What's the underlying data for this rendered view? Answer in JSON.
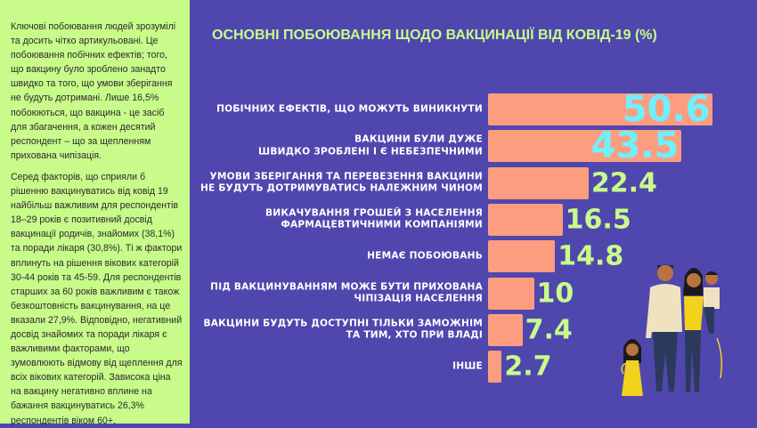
{
  "sidebar": {
    "paragraphs": [
      "Ключові побоювання людей зрозумілі та досить чітко артикульовані. Це побоювання побічних ефектів; того, що вакцину було зроблено занадто швидко та того, що умови зберігання не будуть дотримані. Лише 16,5% побоюються, що вакцина - це засіб для збагачення, а кожен десятий респондент – що за щепленням прихована чипізація.",
      "Серед факторів, що сприяли б рішенню вакцинуватись від ковід 19 найбільш важливим для респондентів 18–29 років є позитивний досвід вакцинації родичів, знайомих (38,1%) та поради лікаря (30,8%). Ті ж фактори вплинуть на рішення вікових категорій 30-44 років та 45-59. Для респондентів старших за 60 років важливим є також безкоштовність вакцинування, на це вказали 27,9%. Відповідно, негативний досвід знайомих та поради лікаря є важливими факторами, що зумовлюють відмову від щеплення для всіх вікових категорій. Зависока ціна на вакцину негативно вплине на бажання вакцинуватись 26,3% респондентів віком 60+."
    ]
  },
  "chart_data": {
    "type": "bar",
    "orientation": "horizontal",
    "title": "ОСНОВНІ ПОБОЮВАННЯ ЩОДО ВАКЦИНАЦІЇ ВІД КОВІД-19 (%)",
    "categories": [
      "ПОБІЧНИХ ЕФЕКТІВ, ЩО МОЖУТЬ ВИНИКНУТИ",
      "ВАКЦИНИ БУЛИ ДУЖЕ ШВИДКО ЗРОБЛЕНІ І Є НЕБЕЗПЕЧНИМИ",
      "УМОВИ ЗБЕРІГАННЯ ТА ПЕРЕВЕЗЕННЯ ВАКЦИНИ НЕ БУДУТЬ ДОТРИМУВАТИСЬ НАЛЕЖНИМ ЧИНОМ",
      "ВИКАЧУВАННЯ ГРОШЕЙ З НАСЕЛЕННЯ ФАРМАЦЕВТИЧНИМИ КОМПАНІЯМИ",
      "НЕМАЄ ПОБОЮВАНЬ",
      "ПІД ВАКЦИНУВАННЯМ МОЖЕ БУТИ ПРИХОВАНА ЧІПІЗАЦІЯ НАСЕЛЕННЯ",
      "ВАКЦИНИ БУДУТЬ ДОСТУПНІ ТІЛЬКИ ЗАМОЖНІМ ТА ТИМ, ХТО ПРИ ВЛАДІ",
      "ІНШЕ"
    ],
    "label_lines": [
      [
        "ПОБІЧНИХ ЕФЕКТІВ, ЩО МОЖУТЬ ВИНИКНУТИ"
      ],
      [
        "ВАКЦИНИ БУЛИ ДУЖЕ",
        "ШВИДКО ЗРОБЛЕНІ І Є НЕБЕЗПЕЧНИМИ"
      ],
      [
        "УМОВИ ЗБЕРІГАННЯ ТА ПЕРЕВЕЗЕННЯ ВАКЦИНИ",
        "НЕ БУДУТЬ ДОТРИМУВАТИСЬ НАЛЕЖНИМ ЧИНОМ"
      ],
      [
        "ВИКАЧУВАННЯ ГРОШЕЙ З НАСЕЛЕННЯ",
        "ФАРМАЦЕВТИЧНИМИ КОМПАНІЯМИ"
      ],
      [
        "НЕМАЄ ПОБОЮВАНЬ"
      ],
      [
        "ПІД ВАКЦИНУВАННЯМ МОЖЕ БУТИ ПРИХОВАНА",
        "ЧІПІЗАЦІЯ НАСЕЛЕННЯ"
      ],
      [
        "ВАКЦИНИ БУДУТЬ ДОСТУПНІ ТІЛЬКИ ЗАМОЖНІМ",
        "ТА ТИМ, ХТО ПРИ ВЛАДІ"
      ],
      [
        "ІНШЕ"
      ]
    ],
    "values": [
      50.6,
      43.5,
      22.4,
      16.5,
      14.8,
      10,
      7.4,
      2.7
    ],
    "value_labels": [
      "50.6",
      "43.5",
      "22.4",
      "16.5",
      "14.8",
      "10",
      "7.4",
      "2.7"
    ],
    "xlim": [
      0,
      55
    ],
    "grid": false,
    "colors": {
      "background": "#4f47ad",
      "bar": "#fd9d80",
      "title": "#c8fb8a",
      "value": "#c8fb8a",
      "value_inside": "#6ff0ff",
      "label": "#ffffff",
      "sidebar": "#c8fb8a"
    }
  }
}
